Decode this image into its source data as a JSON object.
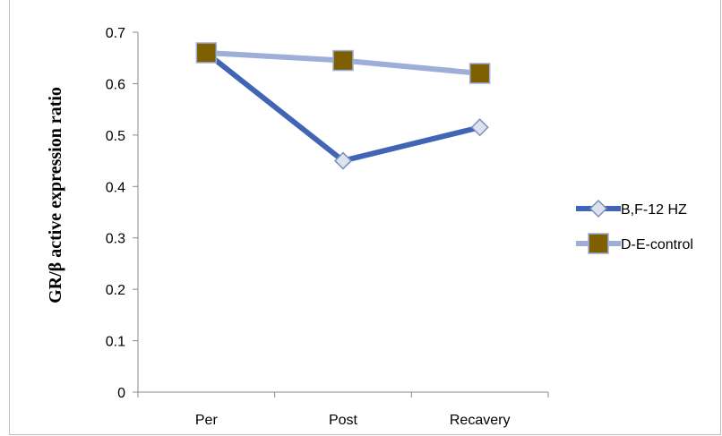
{
  "chart_data": {
    "type": "line",
    "categories": [
      "Per",
      "Post",
      "Recavery"
    ],
    "series": [
      {
        "name": "B,F-12 HZ",
        "values": [
          0.66,
          0.45,
          0.515
        ],
        "color": "#4065b5",
        "marker": "diamond",
        "marker_fill": "#dce3ef"
      },
      {
        "name": "D-E-control",
        "values": [
          0.66,
          0.645,
          0.62
        ],
        "color": "#9daed8",
        "marker": "square",
        "marker_fill": "#7f6000"
      }
    ],
    "yticks": [
      "0",
      "0.1",
      "0.2",
      "0.3",
      "0.4",
      "0.5",
      "0.6",
      "0.7"
    ],
    "ylabel": "GR/β active expression ratio",
    "xlabel": "",
    "ylim": [
      0,
      0.7
    ],
    "grid": false,
    "legend_position": "right"
  }
}
